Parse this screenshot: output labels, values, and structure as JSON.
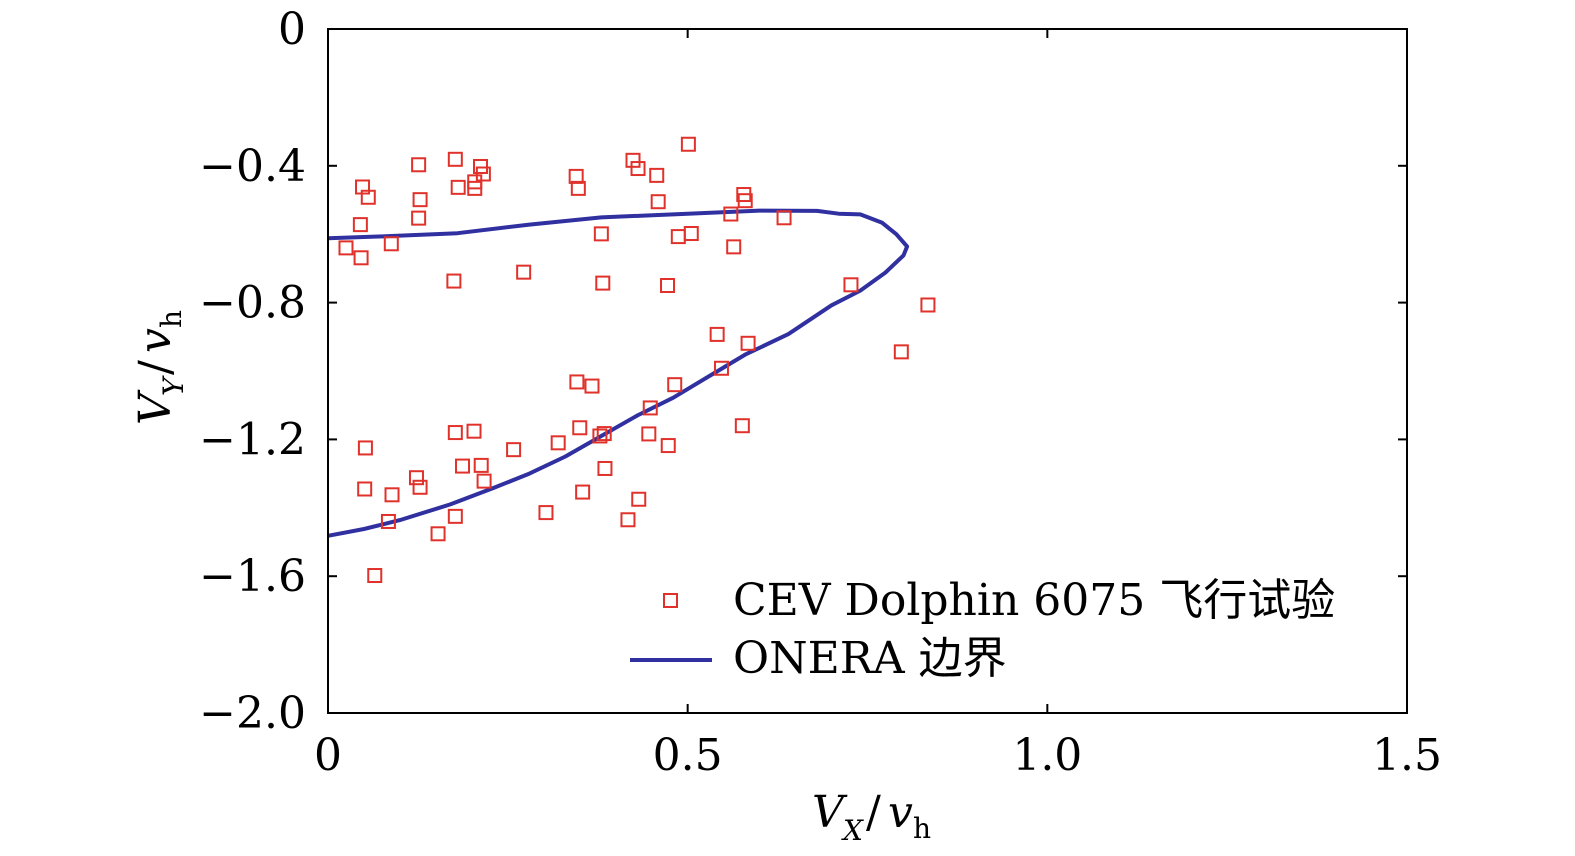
{
  "chart_data": {
    "type": "scatter",
    "xlim": [
      0,
      1.5
    ],
    "ylim": [
      -2.0,
      0
    ],
    "x_ticks": [
      "0",
      "0.5",
      "1.0",
      "1.5"
    ],
    "y_ticks": [
      "0",
      "−0.4",
      "−0.8",
      "−1.2",
      "−1.6",
      "−2.0"
    ],
    "xlabel": {
      "main": "V",
      "sub": "X",
      "slash": "/",
      "denom": "v",
      "denom_sub": "h"
    },
    "ylabel": {
      "main": "V",
      "sub": "Y",
      "slash": "/",
      "denom": "v",
      "denom_sub": "h"
    },
    "grid": false,
    "legend_position": "bottom-right",
    "legend": [
      {
        "label": "CEV Dolphin 6075 飞行试验",
        "marker": "square"
      },
      {
        "label": "ONERA 边界",
        "marker": "line"
      }
    ],
    "colors": {
      "points": "#e0322b",
      "points_inner": "#c02060",
      "line": "#3030a0"
    },
    "series": [
      {
        "name": "CEV Dolphin 6075 飞行试验",
        "kind": "scatter",
        "points": [
          [
            0.048,
            -0.462
          ],
          [
            0.056,
            -0.492
          ],
          [
            0.045,
            -0.572
          ],
          [
            0.025,
            -0.64
          ],
          [
            0.046,
            -0.669
          ],
          [
            0.088,
            -0.628
          ],
          [
            0.126,
            -0.397
          ],
          [
            0.128,
            -0.499
          ],
          [
            0.126,
            -0.553
          ],
          [
            0.177,
            -0.381
          ],
          [
            0.181,
            -0.463
          ],
          [
            0.204,
            -0.447
          ],
          [
            0.204,
            -0.466
          ],
          [
            0.212,
            -0.402
          ],
          [
            0.216,
            -0.424
          ],
          [
            0.175,
            -0.737
          ],
          [
            0.272,
            -0.711
          ],
          [
            0.345,
            -0.431
          ],
          [
            0.348,
            -0.466
          ],
          [
            0.38,
            -0.599
          ],
          [
            0.382,
            -0.743
          ],
          [
            0.424,
            -0.384
          ],
          [
            0.431,
            -0.408
          ],
          [
            0.457,
            -0.428
          ],
          [
            0.459,
            -0.505
          ],
          [
            0.472,
            -0.75
          ],
          [
            0.487,
            -0.607
          ],
          [
            0.501,
            -0.337
          ],
          [
            0.505,
            -0.598
          ],
          [
            0.56,
            -0.541
          ],
          [
            0.564,
            -0.637
          ],
          [
            0.578,
            -0.484
          ],
          [
            0.58,
            -0.502
          ],
          [
            0.634,
            -0.552
          ],
          [
            0.727,
            -0.748
          ],
          [
            0.834,
            -0.807
          ],
          [
            0.797,
            -0.944
          ],
          [
            0.541,
            -0.893
          ],
          [
            0.584,
            -0.919
          ],
          [
            0.547,
            -0.992
          ],
          [
            0.482,
            -1.04
          ],
          [
            0.346,
            -1.032
          ],
          [
            0.367,
            -1.044
          ],
          [
            0.448,
            -1.108
          ],
          [
            0.446,
            -1.184
          ],
          [
            0.473,
            -1.218
          ],
          [
            0.576,
            -1.16
          ],
          [
            0.052,
            -1.225
          ],
          [
            0.177,
            -1.18
          ],
          [
            0.203,
            -1.176
          ],
          [
            0.258,
            -1.23
          ],
          [
            0.32,
            -1.21
          ],
          [
            0.35,
            -1.166
          ],
          [
            0.384,
            -1.183
          ],
          [
            0.378,
            -1.19
          ],
          [
            0.187,
            -1.278
          ],
          [
            0.213,
            -1.276
          ],
          [
            0.123,
            -1.312
          ],
          [
            0.128,
            -1.34
          ],
          [
            0.217,
            -1.322
          ],
          [
            0.385,
            -1.285
          ],
          [
            0.051,
            -1.345
          ],
          [
            0.089,
            -1.362
          ],
          [
            0.354,
            -1.354
          ],
          [
            0.432,
            -1.375
          ],
          [
            0.303,
            -1.414
          ],
          [
            0.084,
            -1.44
          ],
          [
            0.177,
            -1.425
          ],
          [
            0.417,
            -1.435
          ],
          [
            0.153,
            -1.476
          ],
          [
            0.065,
            -1.598
          ]
        ]
      },
      {
        "name": "ONERA 边界",
        "kind": "line",
        "points": [
          [
            0.0,
            -0.612
          ],
          [
            0.08,
            -0.606
          ],
          [
            0.18,
            -0.597
          ],
          [
            0.28,
            -0.572
          ],
          [
            0.38,
            -0.551
          ],
          [
            0.5,
            -0.54
          ],
          [
            0.6,
            -0.531
          ],
          [
            0.68,
            -0.532
          ],
          [
            0.71,
            -0.54
          ],
          [
            0.74,
            -0.542
          ],
          [
            0.77,
            -0.566
          ],
          [
            0.79,
            -0.6
          ],
          [
            0.805,
            -0.636
          ],
          [
            0.8,
            -0.662
          ],
          [
            0.775,
            -0.712
          ],
          [
            0.74,
            -0.765
          ],
          [
            0.7,
            -0.808
          ],
          [
            0.64,
            -0.892
          ],
          [
            0.58,
            -0.952
          ],
          [
            0.53,
            -1.015
          ],
          [
            0.48,
            -1.078
          ],
          [
            0.43,
            -1.13
          ],
          [
            0.38,
            -1.19
          ],
          [
            0.33,
            -1.25
          ],
          [
            0.28,
            -1.3
          ],
          [
            0.23,
            -1.342
          ],
          [
            0.17,
            -1.39
          ],
          [
            0.1,
            -1.436
          ],
          [
            0.05,
            -1.462
          ],
          [
            0.0,
            -1.482
          ]
        ]
      }
    ]
  }
}
